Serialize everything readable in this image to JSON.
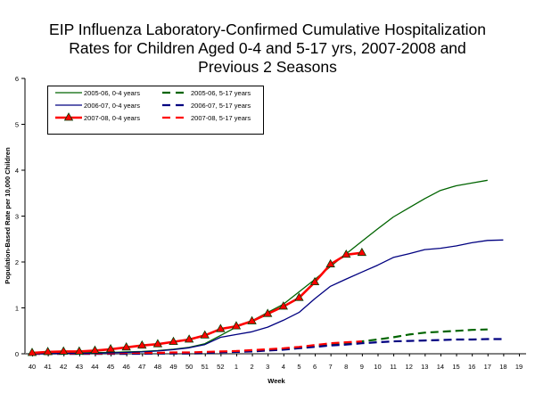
{
  "chart_data": {
    "type": "line",
    "title_lines": [
      "EIP Influenza Laboratory-Confirmed Cumulative Hospitalization",
      "Rates for Children Aged 0-4 and 5-17 yrs, 2007-2008 and",
      "Previous 2 Seasons"
    ],
    "xlabel": "Week",
    "ylabel": "Population-Based Rate per 10,000 Children",
    "ylim": [
      0,
      6
    ],
    "yticks": [
      "0",
      "1",
      "2",
      "3",
      "4",
      "5",
      "6"
    ],
    "categories": [
      "40",
      "41",
      "42",
      "43",
      "44",
      "45",
      "46",
      "47",
      "48",
      "49",
      "50",
      "51",
      "52",
      "1",
      "2",
      "3",
      "4",
      "5",
      "6",
      "7",
      "8",
      "9",
      "10",
      "11",
      "12",
      "13",
      "14",
      "15",
      "16",
      "17",
      "18",
      "19"
    ],
    "grid": false,
    "legend_position": "top-left",
    "series": [
      {
        "name": "2005-06, 0-4 years",
        "color": "#006400",
        "style": "solid",
        "marker": "none",
        "values": [
          0.0,
          0.01,
          0.01,
          0.02,
          0.03,
          0.03,
          0.04,
          0.05,
          0.07,
          0.1,
          0.14,
          0.22,
          0.4,
          0.58,
          0.72,
          0.9,
          1.08,
          1.35,
          1.62,
          1.9,
          2.18,
          2.45,
          2.72,
          2.98,
          3.18,
          3.38,
          3.56,
          3.66,
          3.72,
          3.78,
          null,
          null
        ]
      },
      {
        "name": "2006-07, 0-4 years",
        "color": "#000080",
        "style": "solid",
        "marker": "none",
        "values": [
          0.0,
          0.0,
          0.01,
          0.01,
          0.01,
          0.02,
          0.03,
          0.04,
          0.06,
          0.09,
          0.13,
          0.2,
          0.36,
          0.42,
          0.48,
          0.58,
          0.73,
          0.9,
          1.2,
          1.47,
          1.63,
          1.78,
          1.93,
          2.1,
          2.18,
          2.27,
          2.3,
          2.35,
          2.42,
          2.47,
          2.48,
          null
        ]
      },
      {
        "name": "2007-08, 0-4 years",
        "color": "#ff0000",
        "style": "solid",
        "marker": "triangle",
        "values": [
          0.02,
          0.04,
          0.05,
          0.05,
          0.07,
          0.1,
          0.14,
          0.18,
          0.21,
          0.26,
          0.31,
          0.4,
          0.54,
          0.6,
          0.71,
          0.87,
          1.03,
          1.22,
          1.56,
          1.95,
          2.16,
          2.2,
          null,
          null,
          null,
          null,
          null,
          null,
          null,
          null,
          null,
          null
        ]
      },
      {
        "name": "2005-06, 5-17 years",
        "color": "#006400",
        "style": "dash",
        "marker": "none",
        "values": [
          0.0,
          0.0,
          0.0,
          0.0,
          0.0,
          0.0,
          0.0,
          0.01,
          0.01,
          0.01,
          0.01,
          0.02,
          0.03,
          0.04,
          0.06,
          0.08,
          0.1,
          0.13,
          0.16,
          0.2,
          0.23,
          0.27,
          0.31,
          0.36,
          0.42,
          0.46,
          0.48,
          0.5,
          0.52,
          0.53,
          null,
          null
        ]
      },
      {
        "name": "2006-07, 5-17 years",
        "color": "#000080",
        "style": "dash",
        "marker": "none",
        "values": [
          0.0,
          0.0,
          0.0,
          0.0,
          0.0,
          0.0,
          0.0,
          0.0,
          0.01,
          0.01,
          0.01,
          0.02,
          0.03,
          0.04,
          0.05,
          0.07,
          0.09,
          0.12,
          0.15,
          0.18,
          0.2,
          0.23,
          0.25,
          0.27,
          0.28,
          0.29,
          0.3,
          0.31,
          0.31,
          0.32,
          0.32,
          null
        ]
      },
      {
        "name": "2007-08, 5-17 years",
        "color": "#ff0000",
        "style": "dash",
        "marker": "none",
        "values": [
          0.0,
          0.0,
          0.01,
          0.01,
          0.01,
          0.01,
          0.02,
          0.02,
          0.02,
          0.03,
          0.03,
          0.04,
          0.05,
          0.06,
          0.08,
          0.1,
          0.12,
          0.15,
          0.19,
          0.23,
          0.25,
          0.27,
          null,
          null,
          null,
          null,
          null,
          null,
          null,
          null,
          null,
          null
        ]
      }
    ]
  }
}
